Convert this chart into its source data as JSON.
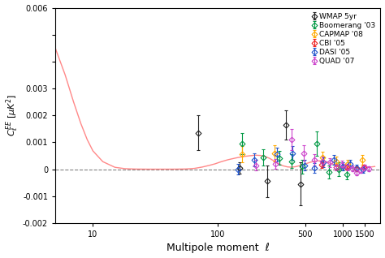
{
  "xlabel": "Multipole moment  ℓ",
  "xlim": [
    5,
    2000
  ],
  "ylim": [
    -0.002,
    0.006
  ],
  "background_color": "#ffffff",
  "theory_curve_color": "#ff8888",
  "theory_l": [
    3,
    4,
    5,
    6,
    7,
    8,
    9,
    10,
    12,
    15,
    18,
    22,
    28,
    35,
    45,
    55,
    65,
    75,
    85,
    95,
    105,
    120,
    140,
    160,
    180,
    200,
    220,
    240,
    260,
    280,
    300,
    330,
    360,
    390,
    420,
    450,
    480,
    510,
    550,
    600,
    650,
    700,
    750,
    800,
    850,
    900,
    950,
    1000,
    1100,
    1200,
    1300,
    1400,
    1500,
    1600,
    1700,
    1800
  ],
  "theory_cl": [
    0.0062,
    0.0055,
    0.0045,
    0.0035,
    0.0025,
    0.0017,
    0.0011,
    0.00068,
    0.00028,
    7e-05,
    2e-05,
    5e-06,
    1e-06,
    1e-06,
    2e-06,
    8e-06,
    3e-05,
    8e-05,
    0.00014,
    0.0002,
    0.00027,
    0.00035,
    0.00042,
    0.00047,
    0.0005,
    0.00052,
    0.00051,
    0.00047,
    0.0004,
    0.00031,
    0.00022,
    0.00013,
    8.5e-05,
    7.5e-05,
    9.5e-05,
    0.00013,
    0.00017,
    0.00021,
    0.00026,
    0.0003,
    0.00031,
    0.0003,
    0.00027,
    0.00022,
    0.00017,
    0.00012,
    8.5e-05,
    6.5e-05,
    5e-05,
    4.2e-05,
    3.8e-05,
    4e-05,
    5e-05,
    6.5e-05,
    8.5e-05,
    0.0001
  ],
  "datasets": [
    {
      "name": "WMAP 5yr",
      "color": "#222222",
      "marker": "D",
      "markersize": 3.5,
      "l": [
        70,
        150,
        250,
        350,
        460
      ],
      "cl": [
        0.00135,
        5e-05,
        -0.00045,
        0.00165,
        -0.00055
      ],
      "el_lo": [
        0.00065,
        0.0002,
        0.0006,
        0.00055,
        0.0008
      ],
      "el_hi": [
        0.00065,
        0.0002,
        0.0006,
        0.00055,
        0.0008
      ]
    },
    {
      "name": "Boomerang '03",
      "color": "#009944",
      "marker": "D",
      "markersize": 3.5,
      "l": [
        155,
        230,
        310,
        390,
        470,
        620,
        770,
        920,
        1070
      ],
      "cl": [
        0.00095,
        0.00045,
        0.00042,
        0.0003,
        0.0001,
        0.00095,
        -0.0001,
        0.0,
        -0.00018
      ],
      "el_lo": [
        0.0004,
        0.0003,
        0.00025,
        0.00025,
        0.00025,
        0.00045,
        0.00025,
        0.00025,
        0.0002
      ],
      "el_hi": [
        0.0004,
        0.0003,
        0.00025,
        0.00025,
        0.00025,
        0.00045,
        0.00025,
        0.00025,
        0.0002
      ]
    },
    {
      "name": "CAPMAP '08",
      "color": "#ffaa00",
      "marker": "D",
      "markersize": 3.5,
      "l": [
        155,
        285,
        690,
        890,
        1090,
        1440
      ],
      "cl": [
        0.00055,
        0.0006,
        0.00045,
        0.0003,
        0.0002,
        0.00035
      ],
      "el_lo": [
        0.0003,
        0.0003,
        0.0002,
        0.00018,
        0.00015,
        0.00018
      ],
      "el_hi": [
        0.0003,
        0.0003,
        0.0002,
        0.00018,
        0.00015,
        0.00018
      ]
    },
    {
      "name": "CBI '05",
      "color": "#ee2222",
      "marker": "D",
      "markersize": 3.5,
      "l": [
        680,
        880,
        1080,
        1280,
        1480
      ],
      "cl": [
        0.00018,
        8e-05,
        8e-05,
        3e-05,
        8e-05
      ],
      "el_lo": [
        0.00012,
        0.0001,
        8e-05,
        8e-05,
        8e-05
      ],
      "el_hi": [
        0.00012,
        0.0001,
        8e-05,
        8e-05,
        8e-05
      ]
    },
    {
      "name": "DASI '05",
      "color": "#2255cc",
      "marker": "D",
      "markersize": 3.5,
      "l": [
        145,
        195,
        295,
        395,
        495,
        595,
        695,
        845,
        995,
        1145,
        1295,
        1445
      ],
      "cl": [
        0.0,
        0.00035,
        0.00055,
        0.0006,
        0.00015,
        5e-05,
        0.00025,
        0.00035,
        0.0001,
        0.0002,
        5e-05,
        0.0
      ],
      "el_lo": [
        0.0002,
        0.00025,
        0.00025,
        0.00025,
        0.0002,
        0.00018,
        0.00018,
        0.00018,
        0.00015,
        0.00015,
        0.00012,
        0.00012
      ],
      "el_hi": [
        0.0002,
        0.00025,
        0.00025,
        0.00025,
        0.0002,
        0.00018,
        0.00018,
        0.00018,
        0.00015,
        0.00015,
        0.00012,
        0.00012
      ]
    },
    {
      "name": "QUAD '07",
      "color": "#cc44cc",
      "marker": "D",
      "markersize": 3.5,
      "l": [
        200,
        290,
        390,
        490,
        590,
        690,
        790,
        890,
        990,
        1090,
        1190,
        1290,
        1390,
        1490,
        1600
      ],
      "cl": [
        0.00015,
        0.0002,
        0.0011,
        0.0006,
        0.00035,
        0.00028,
        0.00025,
        8e-05,
        0.00018,
        8e-05,
        3e-05,
        -0.00012,
        -5e-05,
        8e-05,
        3e-05
      ],
      "el_lo": [
        0.0002,
        0.00018,
        0.0004,
        0.00028,
        0.00022,
        0.00018,
        0.00016,
        0.00013,
        0.00013,
        0.00012,
        0.0001,
        0.0001,
        9e-05,
        9e-05,
        9e-05
      ],
      "el_hi": [
        0.0002,
        0.00018,
        0.0004,
        0.00028,
        0.00022,
        0.00018,
        0.00016,
        0.00013,
        0.00013,
        0.00012,
        0.0001,
        0.0001,
        9e-05,
        9e-05,
        9e-05
      ]
    }
  ]
}
